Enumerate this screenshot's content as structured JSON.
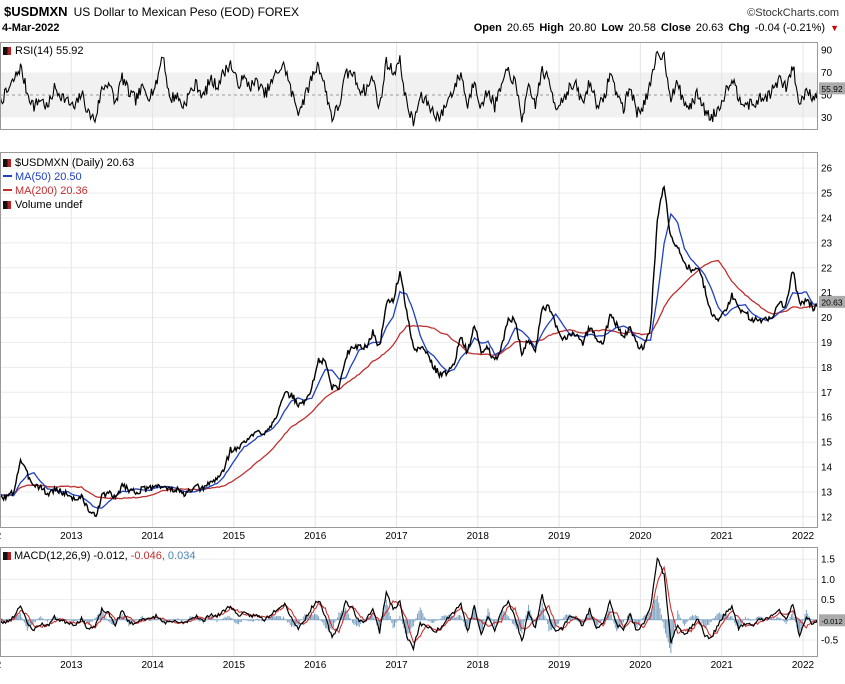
{
  "header": {
    "symbol": "$USDMXN",
    "title": "US Dollar to Mexican Peso (EOD) FOREX",
    "copyright": "©StockCharts.com",
    "date": "4-Mar-2022",
    "quote": {
      "open_label": "Open",
      "open": "20.65",
      "high_label": "High",
      "high": "20.80",
      "low_label": "Low",
      "low": "20.58",
      "close_label": "Close",
      "close": "20.63",
      "chg_label": "Chg",
      "chg": "-0.04 (-0.21%)"
    }
  },
  "panels": {
    "rsi": {
      "label": "RSI(14) 55.92"
    },
    "main": {
      "price_label": "$USDMXN (Daily) 20.63",
      "ma50_label": "MA(50) 20.50",
      "ma200_label": "MA(200) 20.36",
      "volume_label": "Volume undef"
    },
    "macd": {
      "name_label": "MACD(12,26,9)",
      "macd_value": "-0.012,",
      "signal_value": "-0.046,",
      "hist_value": "0.034"
    }
  },
  "chart_data": [
    {
      "panel": "rsi",
      "type": "line",
      "title": "RSI(14)",
      "current": "55.92",
      "current_value": 55.92,
      "color": "#000000",
      "ylim": [
        19,
        97
      ],
      "yticks": [
        90,
        70,
        50,
        30
      ],
      "ytick_labels": [
        "90",
        "70",
        "50",
        "30"
      ],
      "band": [
        30,
        70
      ],
      "midline": 50,
      "x_start": "2012-01",
      "x_interval": "monthly",
      "values": [
        58,
        45,
        52,
        63,
        75,
        52,
        40,
        47,
        38,
        56,
        50,
        44,
        38,
        52,
        34,
        28,
        55,
        62,
        42,
        66,
        52,
        46,
        56,
        50,
        58,
        88,
        46,
        50,
        40,
        52,
        60,
        48,
        64,
        58,
        70,
        78,
        60,
        64,
        58,
        62,
        50,
        60,
        72,
        76,
        52,
        36,
        48,
        66,
        78,
        55,
        30,
        40,
        68,
        70,
        56,
        54,
        66,
        38,
        80,
        70,
        80,
        42,
        25,
        48,
        44,
        34,
        30,
        45,
        56,
        70,
        40,
        65,
        38,
        55,
        40,
        58,
        72,
        60,
        30,
        55,
        42,
        72,
        62,
        40,
        46,
        56,
        58,
        42,
        62,
        44,
        42,
        70,
        52,
        38,
        58,
        34,
        42,
        58,
        88,
        84,
        48,
        60,
        42,
        40,
        52,
        36,
        30,
        38,
        52,
        66,
        48,
        44,
        40,
        46,
        48,
        54,
        64,
        56,
        76,
        40,
        56,
        48,
        55.92
      ]
    },
    {
      "panel": "price",
      "type": "line",
      "title": "$USDMXN (Daily)",
      "current": "20.63",
      "current_value": 20.63,
      "price_color": "#000000",
      "ylim": [
        11.55,
        26.65
      ],
      "yticks": [
        26,
        25,
        24,
        23,
        22,
        21,
        20,
        19,
        18,
        17,
        16,
        15,
        14,
        13,
        12
      ],
      "ytick_labels": [
        "26",
        "25",
        "24",
        "23",
        "22",
        "21",
        "20",
        "19",
        "18",
        "17",
        "16",
        "15",
        "14",
        "13",
        "12"
      ],
      "x_years": [
        "2012",
        "2013",
        "2014",
        "2015",
        "2016",
        "2017",
        "2018",
        "2019",
        "2020",
        "2021",
        "2022"
      ],
      "x_start": "2012-01",
      "x_interval": "monthly",
      "close": [
        13.0,
        12.8,
        12.8,
        13.0,
        14.3,
        13.7,
        13.3,
        13.2,
        12.9,
        13.1,
        13.0,
        12.9,
        12.7,
        12.8,
        12.3,
        12.0,
        12.8,
        13.0,
        12.7,
        13.3,
        13.1,
        13.0,
        13.1,
        13.1,
        13.3,
        13.2,
        13.1,
        13.1,
        12.9,
        13.0,
        13.2,
        13.1,
        13.4,
        13.5,
        13.9,
        14.7,
        14.7,
        15.0,
        15.2,
        15.4,
        15.4,
        15.7,
        16.2,
        16.9,
        16.9,
        16.5,
        16.6,
        17.2,
        18.3,
        18.2,
        17.2,
        17.2,
        18.4,
        18.9,
        18.8,
        18.8,
        19.4,
        18.8,
        20.6,
        20.7,
        21.8,
        20.3,
        18.7,
        18.8,
        18.6,
        18.0,
        17.7,
        17.8,
        18.2,
        19.2,
        18.6,
        19.7,
        18.6,
        18.8,
        18.2,
        18.9,
        19.9,
        19.9,
        18.6,
        19.1,
        18.7,
        20.3,
        20.4,
        19.7,
        19.1,
        19.3,
        19.4,
        19.0,
        19.6,
        19.2,
        19.0,
        20.1,
        19.7,
        19.2,
        19.6,
        18.9,
        18.8,
        19.6,
        24.0,
        25.3,
        23.2,
        22.9,
        22.2,
        21.9,
        22.1,
        21.2,
        20.1,
        19.9,
        20.2,
        20.9,
        20.4,
        20.2,
        19.9,
        19.9,
        19.9,
        20.1,
        20.6,
        20.5,
        21.9,
        20.5,
        20.7,
        20.4,
        20.63
      ],
      "ma50": {
        "label": "MA(50)",
        "current": 20.5,
        "window_months": 3,
        "color": "#2040c0"
      },
      "ma200": {
        "label": "MA(200)",
        "current": 20.36,
        "window_months": 10,
        "color": "#c03030"
      }
    },
    {
      "panel": "macd",
      "type": "line+histogram",
      "title": "MACD(12,26,9)",
      "current": "-0.012",
      "current_value": -0.012,
      "signal_current": -0.046,
      "hist_current": 0.034,
      "ylim": [
        -0.92,
        1.8
      ],
      "yticks": [
        1.5,
        1,
        0.5,
        -0.5
      ],
      "ytick_labels": [
        "1.5",
        "1.0",
        "0.5",
        "-0.5"
      ],
      "colors": {
        "macd": "#000000",
        "signal": "#cc3333",
        "hist": "#7aa0c0"
      },
      "signal_window_months": 2,
      "values": [
        0.1,
        -0.08,
        -0.05,
        0.08,
        0.38,
        -0.1,
        -0.25,
        -0.1,
        -0.15,
        0.06,
        -0.02,
        -0.06,
        -0.12,
        0.02,
        -0.22,
        -0.18,
        0.25,
        0.15,
        -0.12,
        0.22,
        -0.05,
        -0.1,
        0.05,
        0.0,
        0.1,
        -0.05,
        -0.08,
        -0.04,
        -0.1,
        0.02,
        0.1,
        -0.05,
        0.15,
        0.08,
        0.22,
        0.35,
        0.12,
        0.15,
        0.1,
        0.1,
        0.0,
        0.15,
        0.3,
        0.4,
        0.05,
        -0.22,
        0.02,
        0.3,
        0.5,
        0.05,
        -0.45,
        -0.12,
        0.45,
        0.28,
        -0.06,
        0.0,
        0.28,
        -0.3,
        0.7,
        0.25,
        0.45,
        -0.42,
        -0.7,
        -0.1,
        -0.15,
        -0.3,
        -0.2,
        0.05,
        0.2,
        0.4,
        -0.3,
        0.35,
        -0.4,
        0.1,
        -0.28,
        0.22,
        0.45,
        0.08,
        -0.55,
        0.2,
        -0.2,
        0.6,
        0.08,
        -0.3,
        -0.2,
        0.1,
        0.05,
        -0.15,
        0.25,
        -0.18,
        -0.08,
        0.45,
        -0.12,
        -0.25,
        0.15,
        -0.3,
        -0.1,
        0.3,
        1.55,
        1.1,
        -0.55,
        -0.1,
        -0.38,
        -0.18,
        0.05,
        -0.4,
        -0.45,
        -0.1,
        0.15,
        0.3,
        -0.2,
        -0.1,
        -0.15,
        0.0,
        0.02,
        0.1,
        0.22,
        0.02,
        0.38,
        -0.42,
        0.08,
        -0.12,
        -0.012
      ]
    }
  ]
}
